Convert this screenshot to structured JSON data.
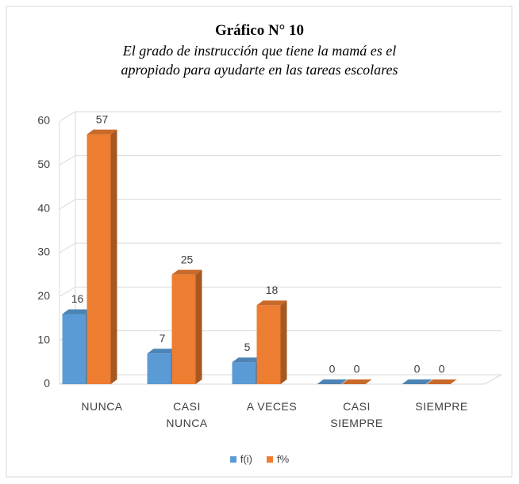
{
  "chart_data": {
    "type": "bar3d",
    "title": "Gráfico N° 10",
    "subtitle": "El grado de instrucción que tiene la mamá es el apropiado para ayudarte en las tareas escolares",
    "categories": [
      "NUNCA",
      "CASI NUNCA",
      "A VECES",
      "CASI SIEMPRE",
      "SIEMPRE"
    ],
    "series": [
      {
        "name": "f(i)",
        "color": "#5b9bd5",
        "values": [
          16,
          7,
          5,
          0,
          0
        ]
      },
      {
        "name": "f%",
        "color": "#ed7d31",
        "values": [
          57,
          25,
          18,
          0,
          0
        ]
      }
    ],
    "ylim": [
      0,
      60
    ],
    "yticks": [
      0,
      10,
      20,
      30,
      40,
      50,
      60
    ],
    "grid": true,
    "legend": "bottom"
  }
}
